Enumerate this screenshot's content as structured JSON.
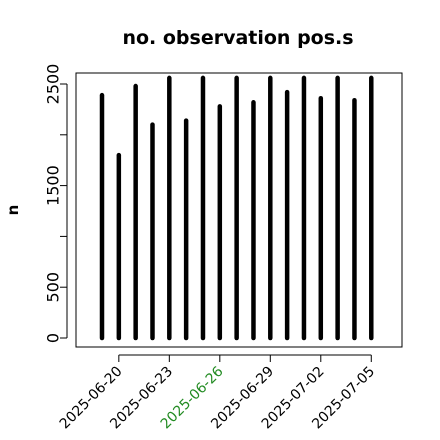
{
  "chart_data": {
    "type": "bar",
    "title": "no. observation pos.s",
    "xlabel": "",
    "ylabel": "n",
    "ylim": [
      0,
      2550
    ],
    "yticks": [
      0,
      500,
      1000,
      1500,
      2000,
      2500
    ],
    "ytick_labels": [
      "0",
      "500",
      "",
      "1500",
      "",
      "2500"
    ],
    "x": [
      "2025-06-19",
      "2025-06-20",
      "2025-06-21",
      "2025-06-22",
      "2025-06-23",
      "2025-06-24",
      "2025-06-25",
      "2025-06-26",
      "2025-06-27",
      "2025-06-28",
      "2025-06-29",
      "2025-06-30",
      "2025-07-01",
      "2025-07-02",
      "2025-07-03",
      "2025-07-04",
      "2025-07-05"
    ],
    "values": [
      2390,
      1800,
      2480,
      2100,
      2560,
      2140,
      2560,
      2280,
      2560,
      2320,
      2560,
      2420,
      2560,
      2360,
      2560,
      2340,
      2560
    ],
    "xtick_labels": [
      "2025-06-20",
      "2025-06-23",
      "2025-06-26",
      "2025-06-29",
      "2025-07-02",
      "2025-07-05"
    ],
    "highlight_tick": "2025-06-26",
    "colors": {
      "bar": "#000000",
      "highlight_tick": "#228B22",
      "tick_label": "#000000"
    },
    "grid": false
  }
}
